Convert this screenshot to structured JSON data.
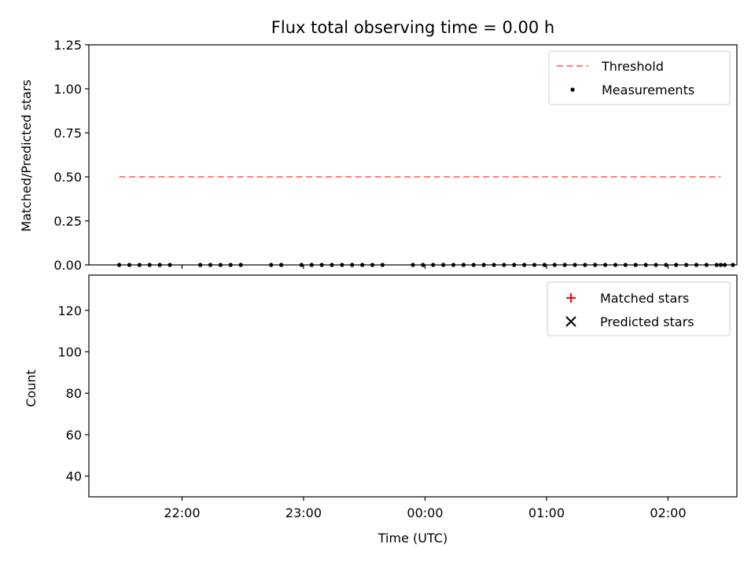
{
  "chart_data": [
    {
      "type": "scatter",
      "title": "Flux total observing time = 0.00 h",
      "ylabel": "Matched/Predicted stars",
      "xlabel": "",
      "ylim": [
        0.0,
        1.25
      ],
      "xlim": [
        "21:14",
        "02:34"
      ],
      "x_ticks": [
        "22:00",
        "23:00",
        "00:00",
        "01:00",
        "02:00"
      ],
      "y_ticks": [
        "0.00",
        "0.25",
        "0.50",
        "0.75",
        "1.00",
        "1.25"
      ],
      "grid": false,
      "legend": "top-right",
      "threshold": {
        "name": "Threshold",
        "value": 0.5,
        "x_start": "21:29",
        "x_end": "02:26",
        "color": "#ff7f7f",
        "style": "dashed"
      },
      "series": [
        {
          "name": "Measurements",
          "color": "#000000",
          "marker": "dot",
          "x": [
            "21:29",
            "21:34",
            "21:39",
            "21:44",
            "21:49",
            "21:54",
            "22:09",
            "22:14",
            "22:19",
            "22:24",
            "22:29",
            "22:44",
            "22:49",
            "22:59",
            "23:04",
            "23:09",
            "23:14",
            "23:19",
            "23:24",
            "23:29",
            "23:34",
            "23:39",
            "23:54",
            "23:59",
            "00:04",
            "00:09",
            "00:14",
            "00:19",
            "00:24",
            "00:29",
            "00:34",
            "00:39",
            "00:44",
            "00:49",
            "00:54",
            "00:59",
            "01:04",
            "01:09",
            "01:14",
            "01:19",
            "01:24",
            "01:29",
            "01:34",
            "01:39",
            "01:44",
            "01:49",
            "01:54",
            "01:59",
            "02:04",
            "02:09",
            "02:14",
            "02:19",
            "02:24",
            "02:26",
            "02:28",
            "02:32"
          ],
          "y": [
            0,
            0,
            0,
            0,
            0,
            0,
            0,
            0,
            0,
            0,
            0,
            0,
            0,
            0,
            0,
            0,
            0,
            0,
            0,
            0,
            0,
            0,
            0,
            0,
            0,
            0,
            0,
            0,
            0,
            0,
            0,
            0,
            0,
            0,
            0,
            0,
            0,
            0,
            0,
            0,
            0,
            0,
            0,
            0,
            0,
            0,
            0,
            0,
            0,
            0,
            0,
            0,
            0,
            0,
            0,
            0
          ]
        }
      ]
    },
    {
      "type": "scatter",
      "title": "",
      "ylabel": "Count",
      "xlabel": "Time (UTC)",
      "ylim": [
        30,
        137
      ],
      "xlim": [
        "21:14",
        "02:34"
      ],
      "x_ticks": [
        "22:00",
        "23:00",
        "00:00",
        "01:00",
        "02:00"
      ],
      "y_ticks": [
        "40",
        "60",
        "80",
        "100",
        "120"
      ],
      "grid": false,
      "legend": "top-right",
      "series": [
        {
          "name": "Matched stars",
          "color": "#ff0000",
          "marker": "plus"
        },
        {
          "name": "Predicted stars",
          "color": "#000000",
          "marker": "x"
        }
      ]
    }
  ]
}
